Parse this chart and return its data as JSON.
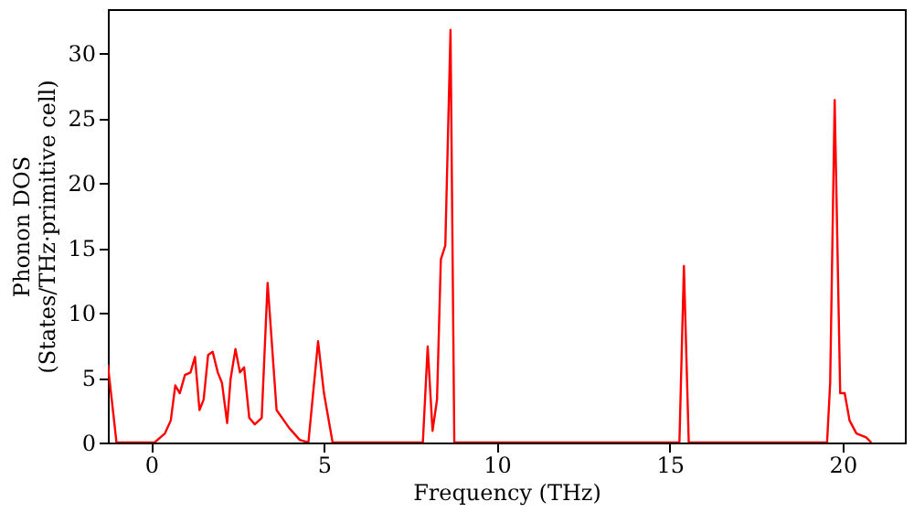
{
  "chart_data": {
    "type": "line",
    "xlabel": "Frequency (THz)",
    "ylabel": "Phonon DOS\n(States/THz·primitive cell)",
    "x": [
      -1.25,
      -1.0,
      0.1,
      0.4,
      0.57,
      0.7,
      0.83,
      0.98,
      1.14,
      1.27,
      1.4,
      1.52,
      1.65,
      1.78,
      1.93,
      2.05,
      2.2,
      2.3,
      2.44,
      2.57,
      2.69,
      2.84,
      3.0,
      3.2,
      3.37,
      3.63,
      4.0,
      4.3,
      4.55,
      4.83,
      5.0,
      5.25,
      7.86,
      8.0,
      8.14,
      8.27,
      8.38,
      8.51,
      8.66,
      8.77,
      15.28,
      15.41,
      15.55,
      19.55,
      19.64,
      19.77,
      19.93,
      20.06,
      20.2,
      20.4,
      20.68,
      20.83
    ],
    "series": [
      {
        "color": "#ff0000",
        "values": [
          6.0,
          0,
          0,
          0.7,
          1.7,
          4.4,
          3.8,
          5.2,
          5.4,
          6.6,
          2.5,
          3.3,
          6.75,
          7.0,
          5.4,
          4.6,
          1.5,
          4.9,
          7.2,
          5.4,
          5.8,
          1.9,
          1.4,
          1.9,
          12.3,
          2.5,
          1.1,
          0.2,
          0,
          7.8,
          3.8,
          0,
          0,
          7.4,
          0.9,
          3.3,
          14.1,
          15.2,
          31.8,
          0,
          0,
          13.6,
          0,
          0,
          4.6,
          26.4,
          3.8,
          3.8,
          1.7,
          0.7,
          0.4,
          0
        ]
      }
    ],
    "xlim": [
      -1.25,
      21.8
    ],
    "ylim": [
      0,
      33.4
    ],
    "xticks": [
      0,
      5,
      10,
      15,
      20
    ],
    "yticks": [
      0,
      5,
      10,
      15,
      20,
      25,
      30
    ],
    "grid": false,
    "legend": false,
    "marker": "none",
    "line_style": "solid"
  }
}
